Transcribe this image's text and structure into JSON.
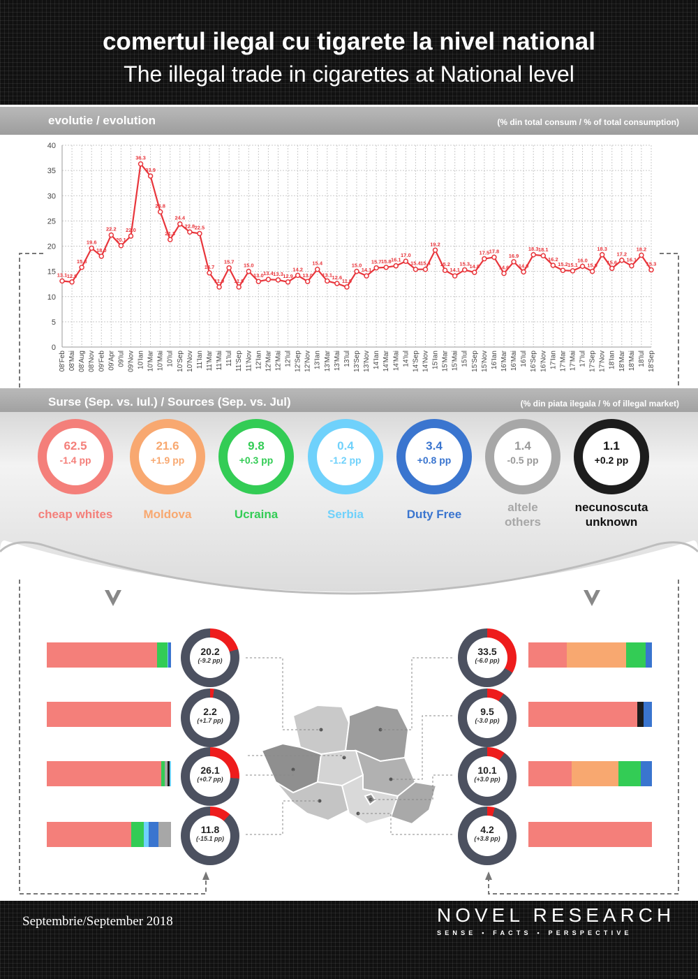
{
  "header": {
    "title_ro": "comertul ilegal cu tigarete la nivel national",
    "title_en": "The illegal trade in cigarettes at National level"
  },
  "evolution": {
    "heading": "evolutie / evolution",
    "unit": "(% din total consum / % of total consumption)"
  },
  "sources_band": {
    "heading": "Surse (Sep. vs. Iul.) / Sources (Sep. vs. Jul)",
    "unit": "(% din piata ilegala / % of illegal market)"
  },
  "sources": [
    {
      "value": "62.5",
      "change": "-1.4 pp",
      "label": "cheap whites",
      "color": "#f47f7a"
    },
    {
      "value": "21.6",
      "change": "+1.9 pp",
      "label": "Moldova",
      "color": "#f8a870"
    },
    {
      "value": "9.8",
      "change": "+0.3 pp",
      "label": "Ucraina",
      "color": "#33cc55"
    },
    {
      "value": "0.4",
      "change": "-1.2 pp",
      "label": "Serbia",
      "color": "#6fd1fb"
    },
    {
      "value": "3.4",
      "change": "+0.8 pp",
      "label": "Duty Free",
      "color": "#3a75cf"
    },
    {
      "value": "1.4",
      "change": "-0.5 pp",
      "label": "altele\nothers",
      "color": "#a7a7a7"
    },
    {
      "value": "1.1",
      "change": "+0.2 pp",
      "label": "necunoscuta\nunknown",
      "color": "#1d1d1d"
    }
  ],
  "regions_left": [
    {
      "value": "20.2",
      "change": "(-9.2 pp)",
      "share": 20.2,
      "bar": [
        [
          "#f47f7a",
          89
        ],
        [
          "#33cc55",
          8
        ],
        [
          "#6fd1fb",
          1
        ],
        [
          "#3a75cf",
          2
        ]
      ]
    },
    {
      "value": "2.2",
      "change": "(+1.7 pp)",
      "share": 2.2,
      "bar": [
        [
          "#f47f7a",
          100
        ]
      ]
    },
    {
      "value": "26.1",
      "change": "(+0.7 pp)",
      "share": 26.1,
      "bar": [
        [
          "#f47f7a",
          92
        ],
        [
          "#33cc55",
          3
        ],
        [
          "#a7a7a7",
          2
        ],
        [
          "#1d1d1d",
          2
        ],
        [
          "#6fd1fb",
          1
        ]
      ]
    },
    {
      "value": "11.8",
      "change": "(-15.1 pp)",
      "share": 11.8,
      "bar": [
        [
          "#f47f7a",
          68
        ],
        [
          "#33cc55",
          10
        ],
        [
          "#6fd1fb",
          4
        ],
        [
          "#3a75cf",
          8
        ],
        [
          "#a7a7a7",
          10
        ]
      ]
    }
  ],
  "regions_right": [
    {
      "value": "33.5",
      "change": "(-6.0 pp)",
      "share": 33.5,
      "bar": [
        [
          "#f47f7a",
          31
        ],
        [
          "#f8a870",
          48
        ],
        [
          "#33cc55",
          16
        ],
        [
          "#3a75cf",
          5
        ]
      ]
    },
    {
      "value": "9.5",
      "change": "(-3.0 pp)",
      "share": 9.5,
      "bar": [
        [
          "#f47f7a",
          88
        ],
        [
          "#1d1d1d",
          5
        ],
        [
          "#3a75cf",
          7
        ]
      ]
    },
    {
      "value": "10.1",
      "change": "(+3.0 pp)",
      "share": 10.1,
      "bar": [
        [
          "#f47f7a",
          35
        ],
        [
          "#f8a870",
          38
        ],
        [
          "#33cc55",
          18
        ],
        [
          "#3a75cf",
          9
        ]
      ]
    },
    {
      "value": "4.2",
      "change": "(+3.8 pp)",
      "share": 4.2,
      "bar": [
        [
          "#f47f7a",
          100
        ]
      ]
    }
  ],
  "footer": {
    "date": "Septembrie/September 2018",
    "brand": "NOVEL RESEARCH",
    "tagline": "SENSE • FACTS • PERSPECTIVE"
  },
  "chart_data": {
    "type": "line",
    "title": "evolutie / evolution",
    "ylabel": "(% din total consum / % of total consumption)",
    "ylim": [
      0,
      40
    ],
    "yticks": [
      0,
      5,
      10,
      15,
      20,
      25,
      30,
      35,
      40
    ],
    "grid": true,
    "color": "#e8353b",
    "x": [
      "08'Feb",
      "08'Mai",
      "08'Aug",
      "08'Nov",
      "09'Feb",
      "09'Apr",
      "09'Iul",
      "09'Nov",
      "10'Ian",
      "10'Mar",
      "10'Mai",
      "10'Iul",
      "10'Sep",
      "10'Nov",
      "11'Ian",
      "11'Mar",
      "11'Mai",
      "11'Iul",
      "11'Sep",
      "11'Nov",
      "12'Ian",
      "12'Mar",
      "12'Mai",
      "12'Iul",
      "12'Sep",
      "12'Nov",
      "13'Ian",
      "13'Mar",
      "13'Mai",
      "13'Iul",
      "13'Sep",
      "13'Nov",
      "14'Ian",
      "14'Mar",
      "14'Mai",
      "14'Iul",
      "14'Sep",
      "14'Nov",
      "15'Ian",
      "15'Mar",
      "15'Mai",
      "15'Iul",
      "15'Sep",
      "15'Nov",
      "16'Ian",
      "16'Mar",
      "16'Mai",
      "16'Iul",
      "16'Sep",
      "16'Nov",
      "17'Ian",
      "17'Mar",
      "17'Mai",
      "17'Iul",
      "17'Sep",
      "17'Nov",
      "18'Ian",
      "18'Mar",
      "18'Mai",
      "18'Iul",
      "18'Sep"
    ],
    "values": [
      13.1,
      12.9,
      15.8,
      19.6,
      18.0,
      22.2,
      20.1,
      22.0,
      36.3,
      33.9,
      26.8,
      21.3,
      24.4,
      22.8,
      22.5,
      14.7,
      11.9,
      15.7,
      11.9,
      15.0,
      13.0,
      13.4,
      13.3,
      12.9,
      14.2,
      13.0,
      15.4,
      13.1,
      12.6,
      11.9,
      15.0,
      14.1,
      15.7,
      15.8,
      16.1,
      17.0,
      15.4,
      15.4,
      19.2,
      15.2,
      14.1,
      15.3,
      14.8,
      17.5,
      17.8,
      14.6,
      16.9,
      14.9,
      18.3,
      18.1,
      16.2,
      15.2,
      15.1,
      16.0,
      15.0,
      18.3,
      15.6,
      17.2,
      16.1,
      18.2,
      15.3
    ],
    "value_labels": [
      "13.1",
      "12.9",
      "15.8",
      "19.6",
      "18.0",
      "22.2",
      "20.1",
      "22.0",
      "36.3",
      "33.9",
      "26.8",
      "21.3",
      "24.4",
      "22.8",
      "22.5",
      "14.7",
      "11.9",
      "15.7",
      "11.9",
      "15.0",
      "13.0",
      "13.4",
      "13.3",
      "12.9",
      "14.2",
      "13.0",
      "15.4",
      "13.1",
      "12.6",
      "11.9",
      "15.0",
      "14.1",
      "15.7",
      "15.8",
      "16.1",
      "17.0",
      "15.4",
      "15.4",
      "19.2",
      "15.2",
      "14.1",
      "15.3",
      "14.8",
      "17.5",
      "17.8",
      "14.6",
      "16.9",
      "14.9",
      "18.3",
      "18.1",
      "16.2",
      "15.2",
      "15.1",
      "16.0",
      "15.0",
      "18.3",
      "15.6",
      "17.2",
      "16.1",
      "18.2",
      "15.3"
    ]
  }
}
